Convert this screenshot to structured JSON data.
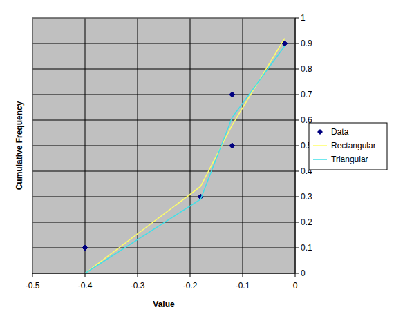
{
  "chart_data": {
    "type": "scatter",
    "x_label": "Value",
    "y_label": "Cumulative Frequency",
    "xlim": [
      -0.5,
      0
    ],
    "xticks": [
      -0.5,
      -0.4,
      -0.3,
      -0.2,
      -0.1,
      0
    ],
    "ylim": [
      0,
      1
    ],
    "yticks": [
      0,
      0.1,
      0.2,
      0.3,
      0.4,
      0.5,
      0.6,
      0.7,
      0.8,
      0.9,
      1
    ],
    "grid": true,
    "legend": "right",
    "series": [
      {
        "name": "Data",
        "color": "#000080",
        "marker": "diamond",
        "line_style": "none",
        "x": [
          -0.4,
          -0.18,
          -0.12,
          -0.12,
          -0.02
        ],
        "values": [
          0.1,
          0.3,
          0.5,
          0.7,
          0.9
        ]
      },
      {
        "name": "Rectangular",
        "color": "#ffff66",
        "marker": "none",
        "line_style": "solid",
        "x": [
          -0.4,
          -0.18,
          -0.12,
          -0.02
        ],
        "values": [
          0,
          0.34,
          0.58,
          0.92
        ]
      },
      {
        "name": "Triangular",
        "color": "#40e0e8",
        "marker": "none",
        "line_style": "solid",
        "x": [
          -0.4,
          -0.18,
          -0.12,
          -0.02
        ],
        "values": [
          0,
          0.29,
          0.61,
          0.89
        ]
      }
    ]
  }
}
